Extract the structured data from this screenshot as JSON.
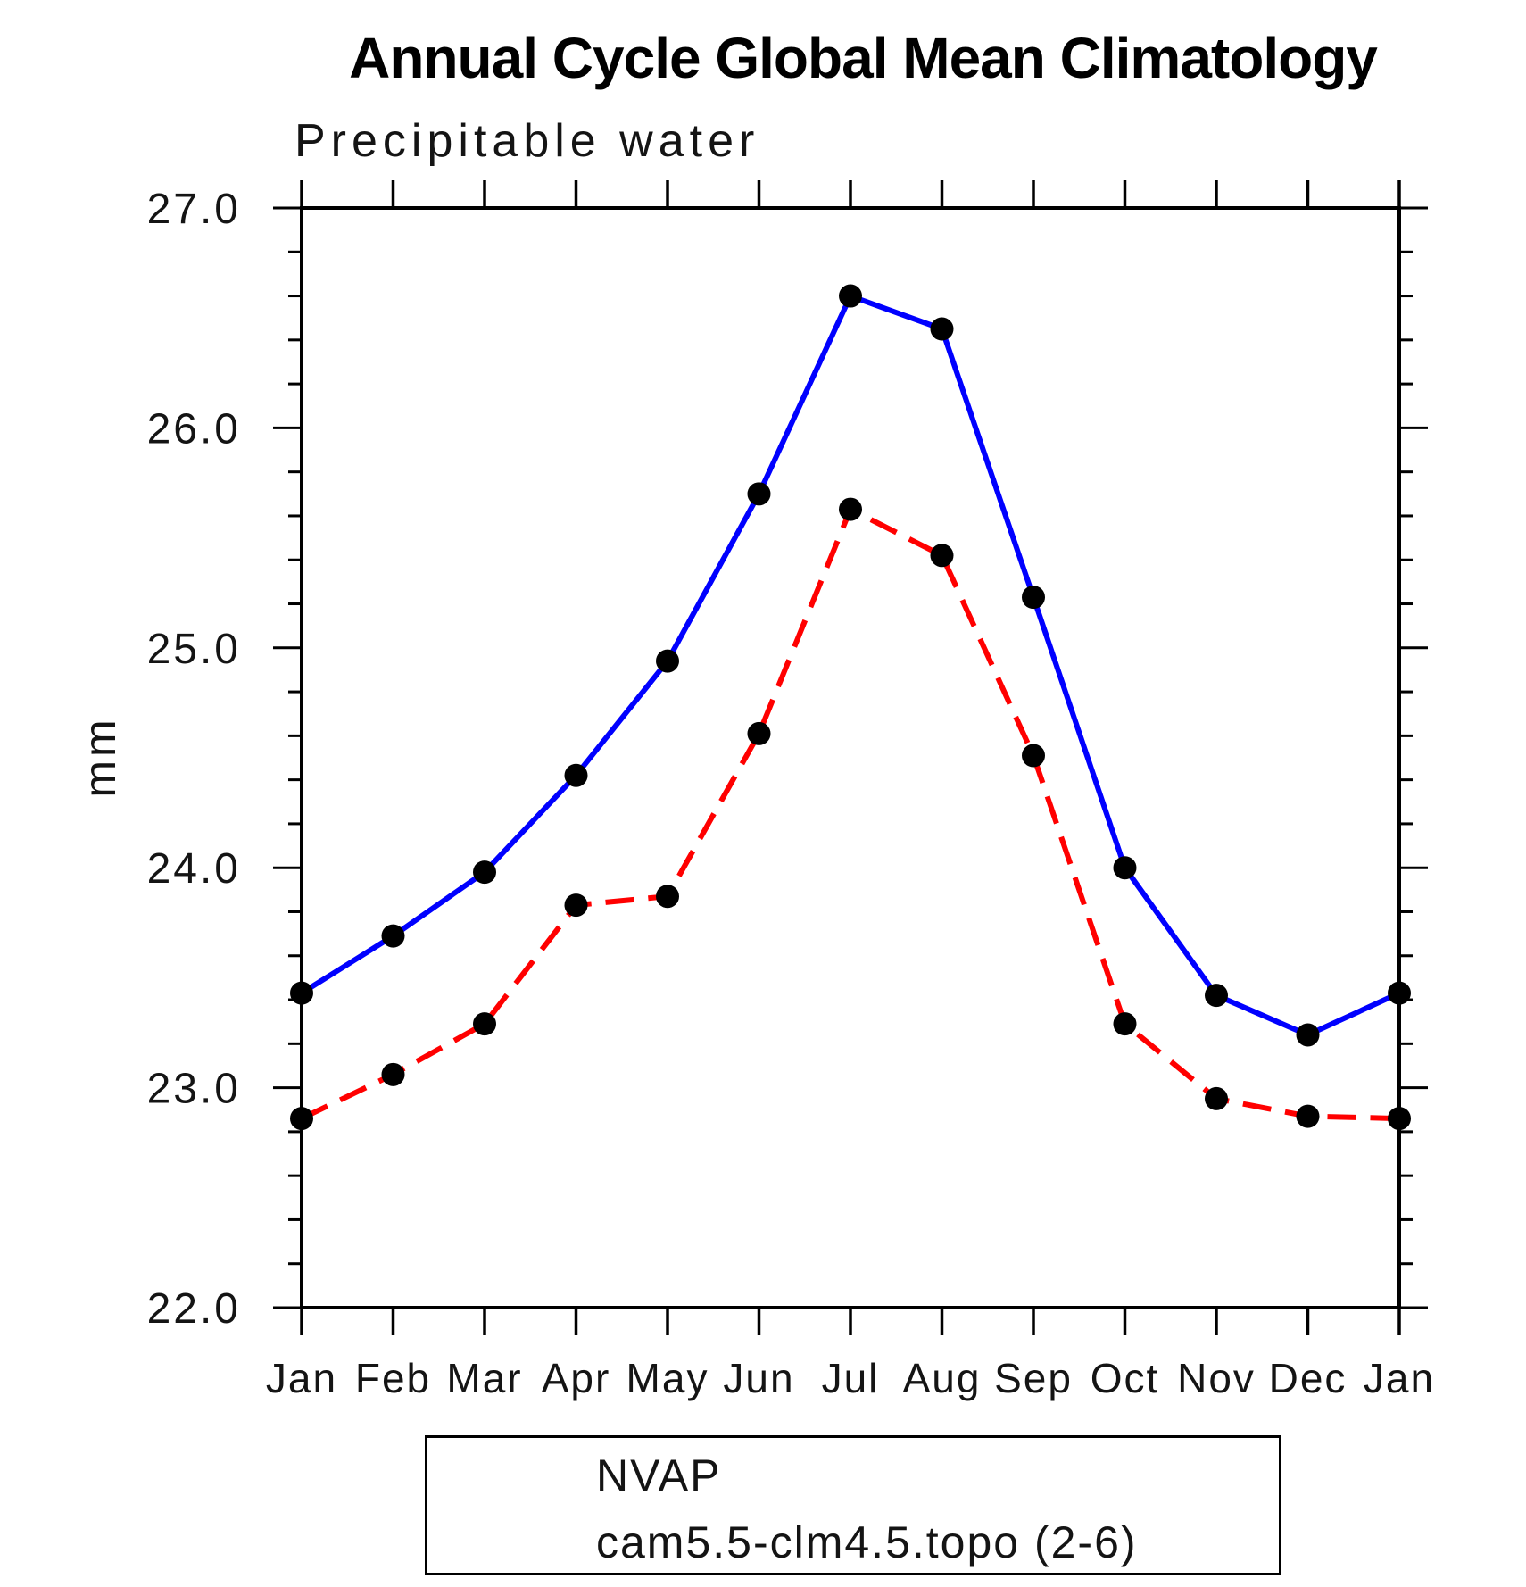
{
  "page": {
    "background": "#FFFFFF"
  },
  "chart_data": {
    "type": "line",
    "title": "Annual Cycle Global Mean Climatology",
    "subtitle": "Precipitable water",
    "xlabel": "",
    "ylabel": "mm",
    "categories": [
      "Jan",
      "Feb",
      "Mar",
      "Apr",
      "May",
      "Jun",
      "Jul",
      "Aug",
      "Sep",
      "Oct",
      "Nov",
      "Dec",
      "Jan"
    ],
    "ylim": [
      22.0,
      27.0
    ],
    "y_major_tick_labels": [
      "22.0",
      "23.0",
      "24.0",
      "25.0",
      "26.0",
      "27.0"
    ],
    "y_minor_step": 0.2,
    "grid": false,
    "legend_position": "bottom-center",
    "axis_color": "#000000",
    "marker_color": "#000000",
    "series": [
      {
        "name": "NVAP",
        "color": "#0000FF",
        "style": "solid",
        "values": [
          23.43,
          23.69,
          23.98,
          24.42,
          24.94,
          25.7,
          26.6,
          26.45,
          25.23,
          24.0,
          23.42,
          23.24,
          23.43
        ]
      },
      {
        "name": "cam5.5-clm4.5.topo (2-6)",
        "color": "#FF0000",
        "style": "dashed",
        "values": [
          22.86,
          23.06,
          23.29,
          23.83,
          23.87,
          24.61,
          25.63,
          25.42,
          24.51,
          23.29,
          22.95,
          22.87,
          22.86
        ]
      }
    ]
  }
}
